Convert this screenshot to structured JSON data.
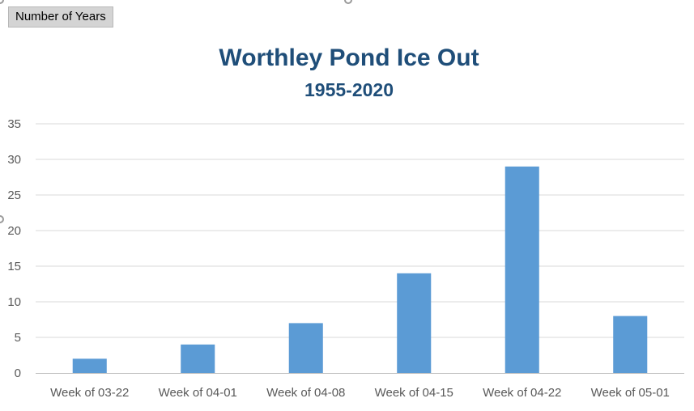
{
  "field_button": {
    "label": "Number of Years"
  },
  "chart_data": {
    "type": "bar",
    "title": "Worthley Pond Ice Out",
    "subtitle": "1955-2020",
    "categories": [
      "Week of 03-22",
      "Week of 04-01",
      "Week of 04-08",
      "Week of 04-15",
      "Week of 04-22",
      "Week of 05-01"
    ],
    "values": [
      2,
      4,
      7,
      14,
      29,
      8
    ],
    "ylim": [
      0,
      35
    ],
    "yticks": [
      0,
      5,
      10,
      15,
      20,
      25,
      30,
      35
    ],
    "grid": true,
    "bar_color": "#5b9bd5",
    "grid_color": "#d9d9d9",
    "title_color": "#1f4e79"
  }
}
